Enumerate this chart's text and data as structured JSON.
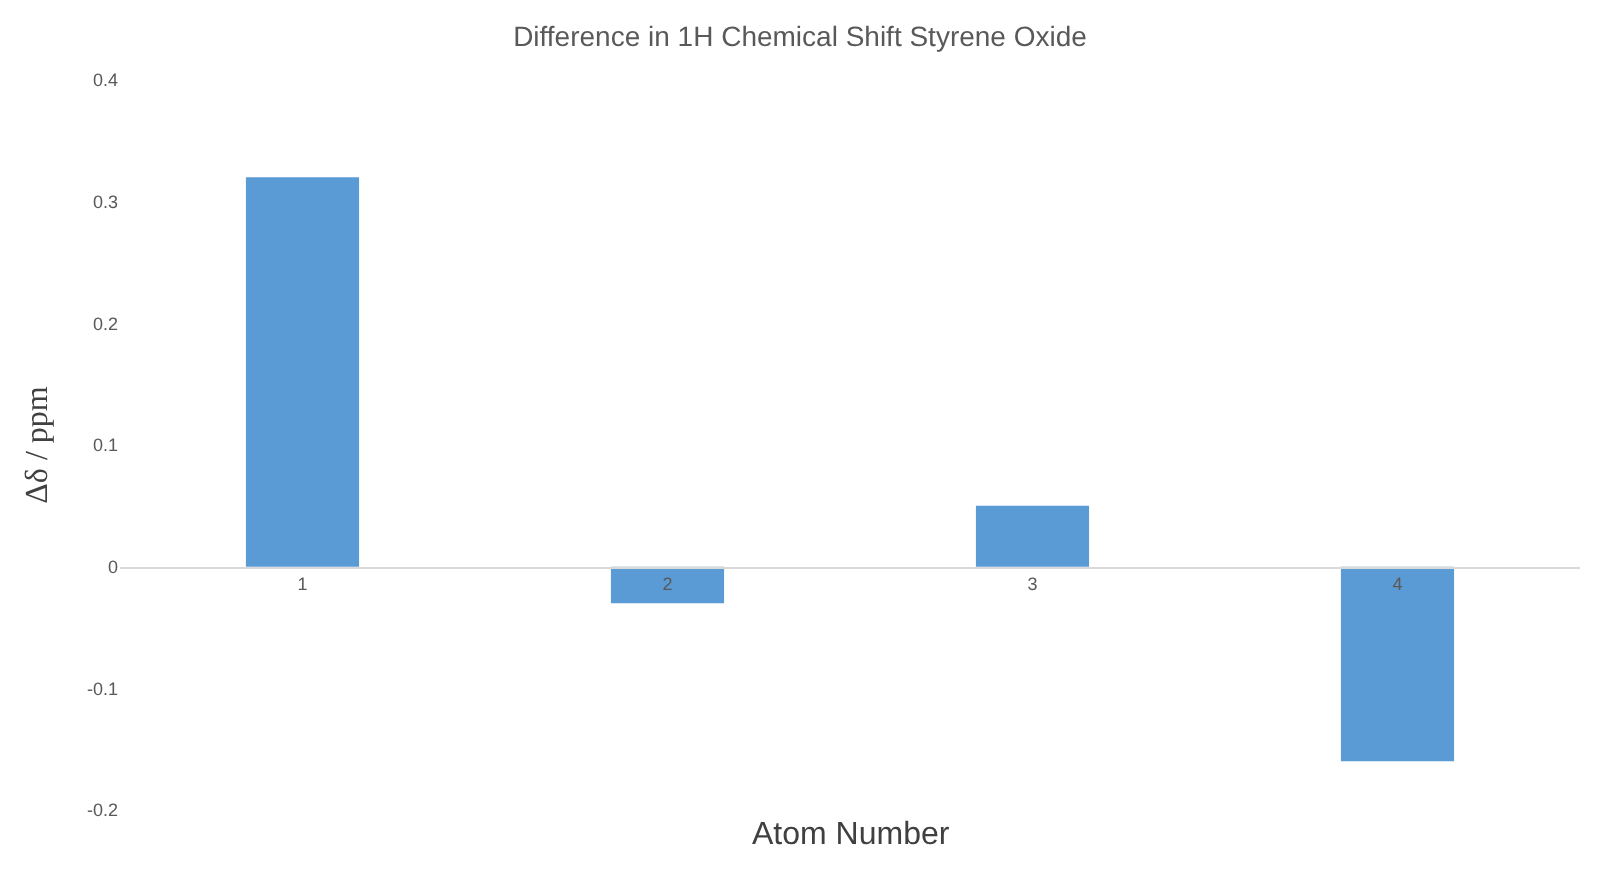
{
  "chart_data": {
    "type": "bar",
    "title": "Difference in 1H Chemical Shift Styrene Oxide",
    "xlabel": "Atom Number",
    "ylabel": "Δδ / ppm",
    "categories": [
      "1",
      "2",
      "3",
      "4"
    ],
    "values": [
      0.32,
      -0.03,
      0.05,
      -0.16
    ],
    "color": "#5b9bd5",
    "ylim": [
      -0.2,
      0.4
    ],
    "yticks": [
      -0.2,
      -0.1,
      0,
      0.1,
      0.2,
      0.3,
      0.4
    ],
    "grid": false
  }
}
